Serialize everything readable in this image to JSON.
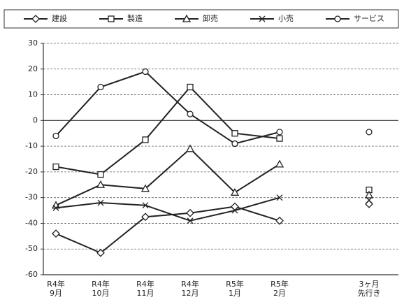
{
  "chart_data": {
    "type": "line",
    "categories": [
      [
        "R4年",
        "9月"
      ],
      [
        "R4年",
        "10月"
      ],
      [
        "R4年",
        "11月"
      ],
      [
        "R4年",
        "12月"
      ],
      [
        "R5年",
        "1月"
      ],
      [
        "R5年",
        "2月"
      ],
      null,
      [
        "3ヶ月",
        "先行き"
      ]
    ],
    "series": [
      {
        "name": "建設",
        "marker": "diamond",
        "color": "#222222",
        "values": [
          -44,
          -51.5,
          -37.5,
          -36,
          -33.5,
          -39,
          null,
          -32.5
        ]
      },
      {
        "name": "製造",
        "marker": "square",
        "color": "#222222",
        "values": [
          -18,
          -21,
          -7.5,
          13,
          -5,
          -7,
          null,
          -27
        ]
      },
      {
        "name": "卸売",
        "marker": "triangle",
        "color": "#222222",
        "values": [
          -33,
          -25,
          -26.5,
          -11,
          -28,
          -17,
          null,
          -29
        ]
      },
      {
        "name": "小売",
        "marker": "x",
        "color": "#222222",
        "values": [
          -34,
          -32,
          -33,
          -39,
          -35,
          -30,
          null,
          -31
        ]
      },
      {
        "name": "サービス",
        "marker": "circle",
        "color": "#222222",
        "values": [
          -6,
          13,
          19,
          2.5,
          -9,
          -4.5,
          null,
          -4.5
        ]
      }
    ],
    "ylim": [
      -60,
      30
    ],
    "yticks": [
      -60,
      -50,
      -40,
      -30,
      -20,
      -10,
      0,
      10,
      20,
      30
    ],
    "grid": true
  }
}
